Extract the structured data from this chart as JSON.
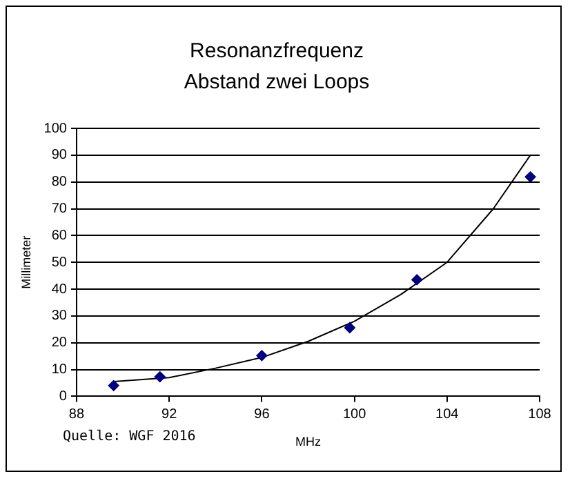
{
  "chart_data": {
    "type": "scatter",
    "title": "Resonanzfrequenz\nAbstand zwei Loops",
    "xlabel": "MHz",
    "ylabel": "Millimeter",
    "xlim": [
      88,
      108
    ],
    "xticks": [
      88,
      92,
      96,
      100,
      104,
      108
    ],
    "ylim": [
      0,
      100
    ],
    "yticks": [
      0,
      10,
      20,
      30,
      40,
      50,
      60,
      70,
      80,
      90,
      100
    ],
    "grid": "y",
    "legend": false,
    "marker": "diamond",
    "series": [
      {
        "type": "scatter",
        "color": "#000080",
        "x": [
          89.6,
          91.6,
          96.0,
          99.8,
          102.7,
          107.6
        ],
        "values": [
          4.0,
          7.3,
          15.2,
          25.6,
          43.5,
          81.9
        ]
      },
      {
        "type": "line",
        "color": "#000000",
        "marker": "none",
        "line_style": "solid",
        "x": [
          89.6,
          92,
          94,
          96,
          98,
          100,
          102,
          104,
          106,
          107.6
        ],
        "values": [
          5.5,
          7,
          10.5,
          14.5,
          20.5,
          28,
          38,
          50,
          70,
          90
        ]
      }
    ],
    "annotations": [
      "Quelle: WGF 2016"
    ]
  }
}
